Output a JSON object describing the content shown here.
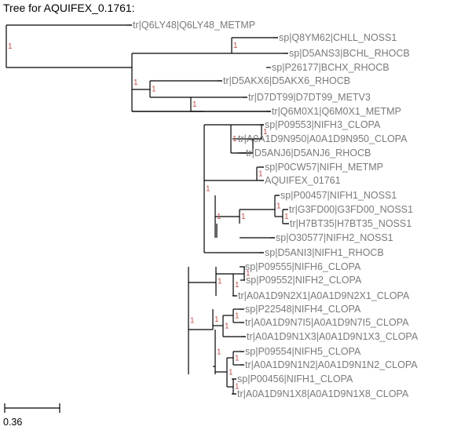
{
  "title": "Tree for AQUIFEX_0.1761:",
  "scale_bar": {
    "label": "0.36"
  },
  "support_value": "1",
  "colors": {
    "branch": "#000000",
    "leaf_text": "#7a7a7a",
    "support": "#c0504d"
  },
  "leaves": [
    "tr|Q6LY48|Q6LY48_METMP",
    "sp|Q8YM62|CHLL_NOSS1",
    "sp|D5ANS3|BCHL_RHOCB",
    "sp|P26177|BCHX_RHOCB",
    "tr|D5AKX6|D5AKX6_RHOCB",
    "tr|D7DT99|D7DT99_METV3",
    "tr|Q6M0X1|Q6M0X1_METMP",
    "sp|P09553|NIFH3_CLOPA",
    "tr|A0A1D9N950|A0A1D9N950_CLOPA",
    "tr|D5ANJ6|D5ANJ6_RHOCB",
    "sp|P0CW57|NIFH_METMP",
    "AQUIFEX_01761",
    "sp|P00457|NIFH1_NOSS1",
    "tr|G3FD00|G3FD00_NOSS1",
    "tr|H7BT35|H7BT35_NOSS1",
    "sp|O30577|NIFH2_NOSS1",
    "sp|D5ANI3|NIFH1_RHOCB",
    "sp|P09555|NIFH6_CLOPA",
    "sp|P09552|NIFH2_CLOPA",
    "tr|A0A1D9N2X1|A0A1D9N2X1_CLOPA",
    "sp|P22548|NIFH4_CLOPA",
    "tr|A0A1D9N7I5|A0A1D9N7I5_CLOPA",
    "tr|A0A1D9N1X3|A0A1D9N1X3_CLOPA",
    "sp|P09554|NIFH5_CLOPA",
    "tr|A0A1D9N1N2|A0A1D9N1N2_CLOPA",
    "sp|P00456|NIFH1_CLOPA",
    "tr|A0A1D9N1X8|A0A1D9N1X8_CLOPA"
  ]
}
